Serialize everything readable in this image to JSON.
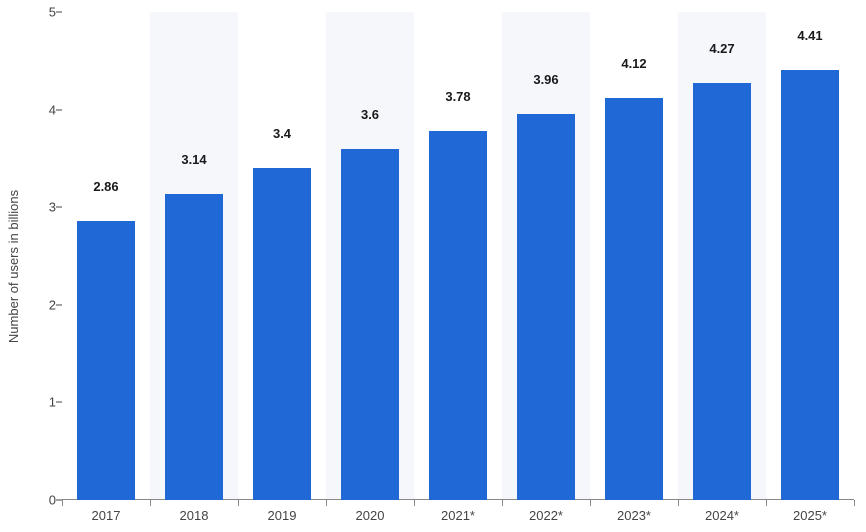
{
  "chart": {
    "type": "bar",
    "ylabel": "Number of users in billions",
    "ylabel_fontsize": 13,
    "ylim": [
      0,
      5
    ],
    "yticks": [
      0,
      1,
      2,
      3,
      4,
      5
    ],
    "categories": [
      "2017",
      "2018",
      "2019",
      "2020",
      "2021*",
      "2022*",
      "2023*",
      "2024*",
      "2025*"
    ],
    "values": [
      2.86,
      3.14,
      3.4,
      3.6,
      3.78,
      3.96,
      4.12,
      4.27,
      4.41
    ],
    "value_labels": [
      "2.86",
      "3.14",
      "3.4",
      "3.6",
      "3.78",
      "3.96",
      "4.12",
      "4.27",
      "4.41"
    ],
    "bar_color": "#2068d6",
    "stripe_colors": [
      "#ffffff",
      "#f5f7fb"
    ],
    "background_color": "#ffffff",
    "axis_color": "#888888",
    "tick_label_color": "#444444",
    "value_label_color": "#1a1a1a",
    "value_label_fontsize": 13,
    "value_label_fontweight": 700,
    "tick_fontsize": 13,
    "bar_width_ratio": 0.67
  }
}
